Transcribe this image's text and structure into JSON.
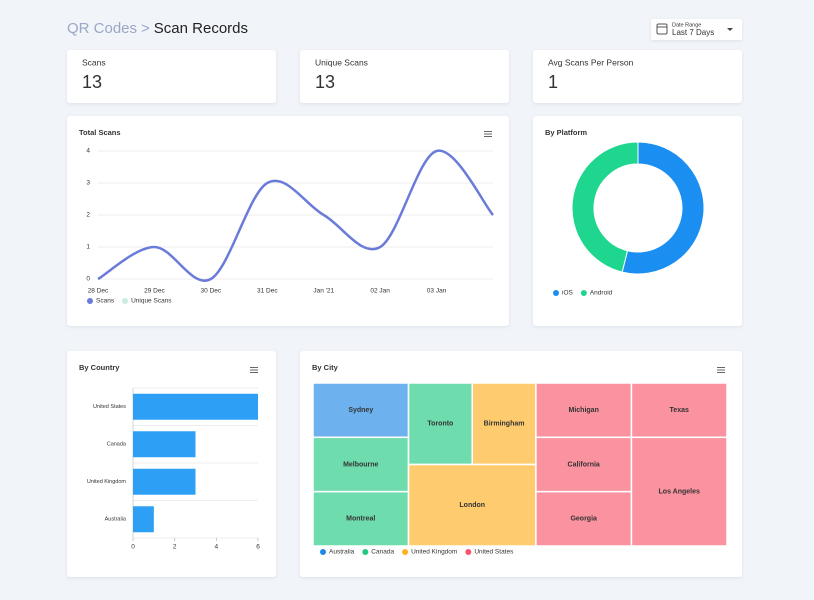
{
  "header": {
    "section": "QR Codes",
    "separator": ">",
    "title": "Scan Records"
  },
  "date_range": {
    "label": "Date Range",
    "value": "Last 7 Days"
  },
  "stats": [
    {
      "label": "Scans",
      "value": 13
    },
    {
      "label": "Unique Scans",
      "value": 13
    },
    {
      "label": "Avg Scans Per Person",
      "value": 1
    }
  ],
  "chart_data": [
    {
      "type": "line",
      "title": "Total Scans",
      "categories": [
        "28 Dec",
        "29 Dec",
        "30 Dec",
        "31 Dec",
        "Jan '21",
        "02 Jan",
        "03 Jan",
        null
      ],
      "series": [
        {
          "name": "Scans",
          "color": "#6a7bd9",
          "values": [
            0,
            1,
            0,
            3,
            2,
            1,
            4,
            2
          ]
        },
        {
          "name": "Unique Scans",
          "color": "#c9eedd",
          "hidden": true,
          "values": [
            null,
            null,
            null,
            null,
            null,
            null,
            null,
            null
          ]
        }
      ],
      "ylim": [
        0,
        4
      ],
      "yticks": [
        0,
        1,
        2,
        3,
        4
      ],
      "grid": true
    },
    {
      "type": "donut",
      "title": "By Platform",
      "categories": [
        "iOS",
        "Android"
      ],
      "values": [
        7,
        6
      ],
      "colors": [
        "#1b8ef2",
        "#1fd68f"
      ]
    },
    {
      "type": "bar",
      "orientation": "horizontal",
      "title": "By Country",
      "categories": [
        "United States",
        "Canada",
        "United Kingdom",
        "Australia"
      ],
      "values": [
        6,
        3,
        3,
        1
      ],
      "color": "#2d9ff5",
      "xlim": [
        0,
        6
      ],
      "xticks": [
        0,
        2,
        4,
        6
      ]
    },
    {
      "type": "treemap",
      "title": "By City",
      "series": [
        {
          "name": "Australia",
          "color": "#1e88e5",
          "categories": [
            "Sydney"
          ],
          "values": [
            1
          ]
        },
        {
          "name": "Canada",
          "color": "#22c983",
          "categories": [
            "Melbourne",
            "Montreal",
            "Toronto"
          ],
          "values": [
            1,
            1,
            1
          ]
        },
        {
          "name": "United Kingdom",
          "color": "#fdb022",
          "categories": [
            "Birmingham",
            "London"
          ],
          "values": [
            1,
            2
          ]
        },
        {
          "name": "United States",
          "color": "#f7576c",
          "categories": [
            "Michigan",
            "California",
            "Georgia",
            "Texas",
            "Los Angeles"
          ],
          "values": [
            1,
            1,
            1,
            1,
            2
          ]
        }
      ]
    }
  ]
}
